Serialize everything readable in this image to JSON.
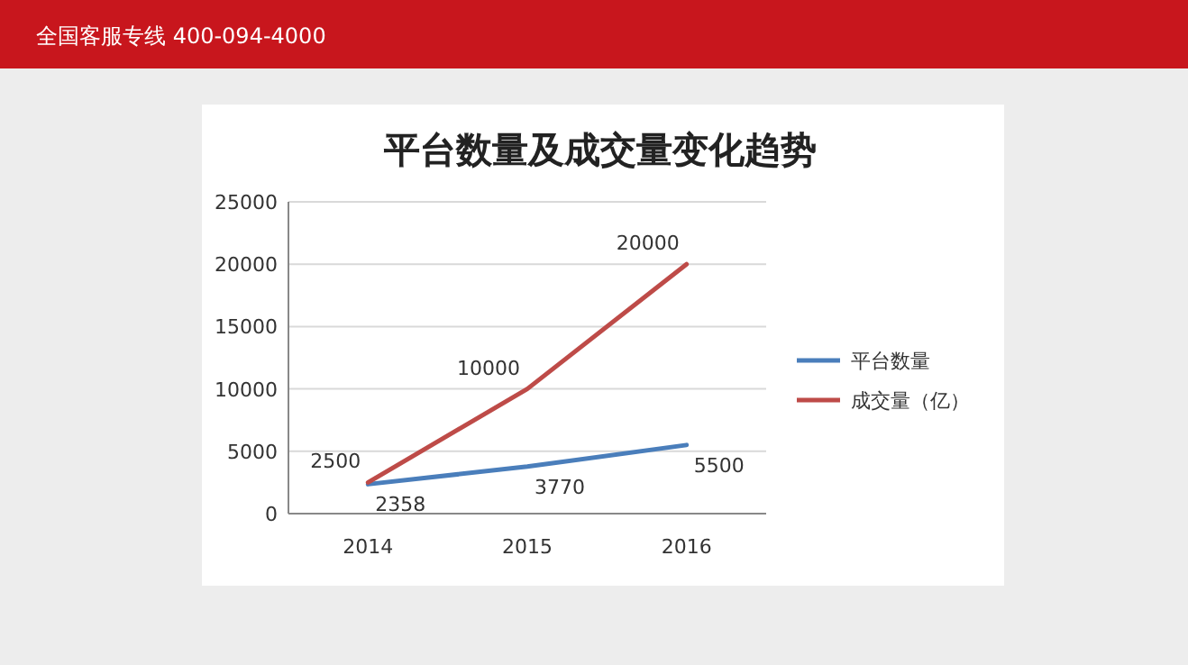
{
  "chart_data": {
    "type": "line",
    "title": "平台数量及成交量变化趋势",
    "categories": [
      "2014",
      "2015",
      "2016"
    ],
    "series": [
      {
        "name": "平台数量",
        "color": "#4a7ebb",
        "values": [
          2358,
          3770,
          5500
        ]
      },
      {
        "name": "成交量（亿）",
        "color": "#be4b48",
        "values": [
          2500,
          10000,
          20000
        ]
      }
    ],
    "ylim": [
      0,
      25000
    ],
    "yticks": [
      0,
      5000,
      10000,
      15000,
      20000,
      25000
    ],
    "grid": "y",
    "legend": "right",
    "data_labels": true,
    "marker": "none",
    "line_style": "solid",
    "annotations": [
      "全国客服专线  400-094-4000"
    ]
  }
}
